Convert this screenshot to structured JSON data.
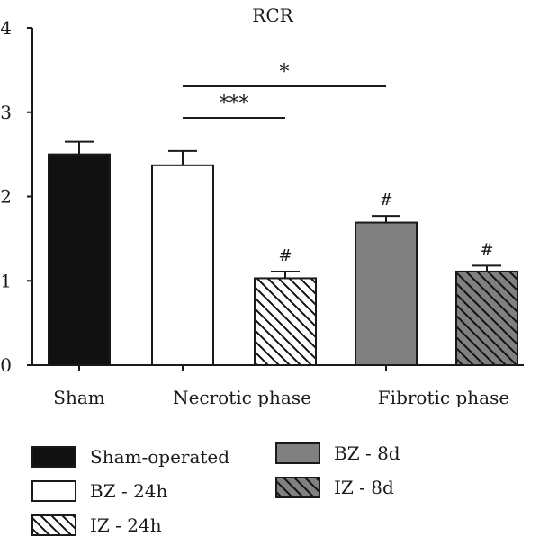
{
  "chart_data": {
    "type": "bar",
    "title": "RCR",
    "xlabel": "",
    "ylabel": "",
    "ylim": [
      0,
      4
    ],
    "yticks": [
      "0",
      "1",
      "2",
      "3",
      "4"
    ],
    "group_labels": [
      "Sham",
      "Necrotic phase",
      "Fibrotic phase"
    ],
    "series": [
      {
        "name": "Sham-operated",
        "group": 0,
        "value": 2.5,
        "error": 0.15,
        "fill": "#111111",
        "hatch": false,
        "sig": ""
      },
      {
        "name": "BZ - 24h",
        "group": 1,
        "value": 2.37,
        "error": 0.17,
        "fill": "#ffffff",
        "hatch": false,
        "sig": ""
      },
      {
        "name": "IZ - 24h",
        "group": 1,
        "value": 1.03,
        "error": 0.08,
        "fill": "#ffffff",
        "hatch": true,
        "sig": "#"
      },
      {
        "name": "BZ - 8d",
        "group": 2,
        "value": 1.69,
        "error": 0.08,
        "fill": "#808080",
        "hatch": false,
        "sig": "#"
      },
      {
        "name": "IZ - 8d",
        "group": 2,
        "value": 1.11,
        "error": 0.07,
        "fill": "#808080",
        "hatch": true,
        "sig": "#"
      }
    ],
    "comparisons": [
      {
        "from": 1,
        "to": 2,
        "label": "***"
      },
      {
        "from": 1,
        "to": 3,
        "label": "*"
      }
    ],
    "legend_placement": "bottom",
    "grid": false
  }
}
